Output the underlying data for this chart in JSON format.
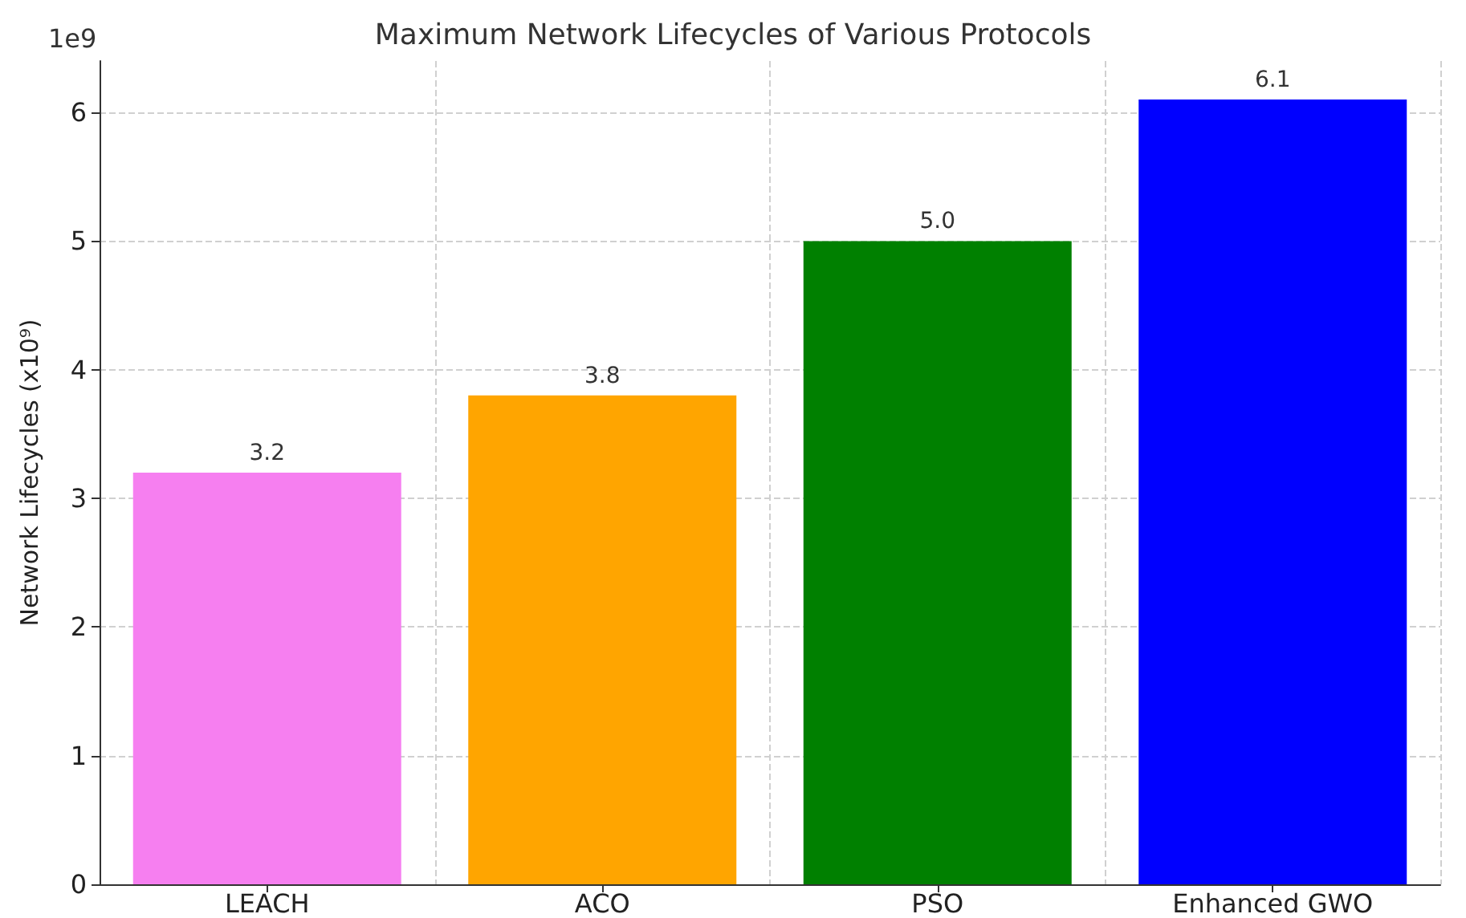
{
  "chart_data": {
    "type": "bar",
    "title": "Maximum Network Lifecycles of Various Protocols",
    "ylabel": "Network Lifecycles (x10⁹)",
    "annotations": [
      "1e9"
    ],
    "categories": [
      "LEACH",
      "ACO",
      "PSO",
      "Enhanced GWO"
    ],
    "values": [
      3.2,
      3.8,
      5.0,
      6.1
    ],
    "colors": [
      "#f67ff0",
      "#ffa500",
      "#008000",
      "#0000ff"
    ],
    "value_labels": [
      "3.2",
      "3.8",
      "5.0",
      "6.1"
    ],
    "ylim": [
      0,
      6.4
    ],
    "yticks": [
      0,
      1,
      2,
      3,
      4,
      5,
      6
    ],
    "grid": true
  }
}
